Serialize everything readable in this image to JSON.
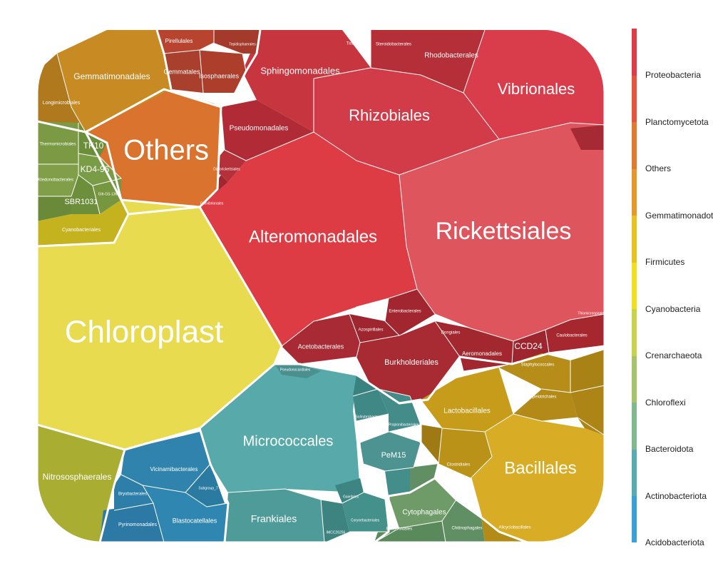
{
  "chart_data": {
    "type": "voronoi-treemap",
    "legend": {
      "title": "",
      "items": [
        {
          "name": "Proteobacteria",
          "color": "#e03c46"
        },
        {
          "name": "Planctomycetota",
          "color": "#e5553d"
        },
        {
          "name": "Others",
          "color": "#e07a2e"
        },
        {
          "name": "Gemmatimonadota",
          "color": "#e4992a"
        },
        {
          "name": "Firmicutes",
          "color": "#e8c21e"
        },
        {
          "name": "Cyanobacteria",
          "color": "#f0e020"
        },
        {
          "name": "Crenarchaeota",
          "color": "#c8d24a"
        },
        {
          "name": "Chloroflexi",
          "color": "#a6c46a"
        },
        {
          "name": "Bacteroidota",
          "color": "#80b890"
        },
        {
          "name": "Actinobacteriota",
          "color": "#58acb0"
        },
        {
          "name": "Acidobacteriota",
          "color": "#3aa0d8"
        }
      ]
    },
    "cells": [
      {
        "label": "Chloroplast",
        "group": "Cyanobacteria",
        "size": "xl"
      },
      {
        "label": "Rickettsiales",
        "group": "Proteobacteria",
        "size": "l"
      },
      {
        "label": "Alteromonadales",
        "group": "Proteobacteria",
        "size": "m"
      },
      {
        "label": "Rhizobiales",
        "group": "Proteobacteria",
        "size": "m"
      },
      {
        "label": "Vibrionales",
        "group": "Proteobacteria",
        "size": "m"
      },
      {
        "label": "Sphingomonadales",
        "group": "Proteobacteria",
        "size": "s"
      },
      {
        "label": "Rhodobacterales",
        "group": "Proteobacteria",
        "size": "xs"
      },
      {
        "label": "Pseudomonadales",
        "group": "Proteobacteria",
        "size": "xs"
      },
      {
        "label": "Acetobacterales",
        "group": "Proteobacteria",
        "size": "xs"
      },
      {
        "label": "Burkholderiales",
        "group": "Proteobacteria",
        "size": "xs"
      },
      {
        "label": "Aeromonadales",
        "group": "Proteobacteria",
        "size": "xxs"
      },
      {
        "label": "CCD24",
        "group": "Proteobacteria",
        "size": "xs"
      },
      {
        "label": "Tistrellales",
        "group": "Proteobacteria",
        "size": "xxs"
      },
      {
        "label": "Steroidobacterales",
        "group": "Proteobacteria",
        "size": "xxs"
      },
      {
        "label": "Enterobacterales",
        "group": "Proteobacteria",
        "size": "xxs"
      },
      {
        "label": "Azospirillales",
        "group": "Proteobacteria",
        "size": "xxs"
      },
      {
        "label": "Caulobacterales",
        "group": "Proteobacteria",
        "size": "xxs"
      },
      {
        "label": "Cellvibrionales",
        "group": "Proteobacteria",
        "size": "xxs"
      },
      {
        "label": "Diplorickettsiales",
        "group": "Proteobacteria",
        "size": "xxs"
      },
      {
        "label": "Dongiales",
        "group": "Proteobacteria",
        "size": "xxs"
      },
      {
        "label": "Thiomicrospirales",
        "group": "Proteobacteria",
        "size": "xxs"
      },
      {
        "label": "Pirellulales",
        "group": "Planctomycetota",
        "size": "xxs"
      },
      {
        "label": "Gemmatales",
        "group": "Planctomycetota",
        "size": "xxs"
      },
      {
        "label": "Isosphaerales",
        "group": "Planctomycetota",
        "size": "xxs"
      },
      {
        "label": "Tepidisphaerales",
        "group": "Planctomycetota",
        "size": "xxs"
      },
      {
        "label": "Others",
        "group": "Others",
        "size": "l"
      },
      {
        "label": "Gemmatimonadales",
        "group": "Gemmatimonadota",
        "size": "s"
      },
      {
        "label": "Longimicrobiales",
        "group": "Gemmatimonadota",
        "size": "xxs"
      },
      {
        "label": "Bacillales",
        "group": "Firmicutes",
        "size": "m"
      },
      {
        "label": "Lactobacillales",
        "group": "Firmicutes",
        "size": "xs"
      },
      {
        "label": "Clostridiales",
        "group": "Firmicutes",
        "size": "xxs"
      },
      {
        "label": "Erysipelotrichales",
        "group": "Firmicutes",
        "size": "xxs"
      },
      {
        "label": "Staphylococcales",
        "group": "Firmicutes",
        "size": "xxs"
      },
      {
        "label": "Alicyclobacillales",
        "group": "Firmicutes",
        "size": "xxs"
      },
      {
        "label": "Cyanobacteriales",
        "group": "Cyanobacteria",
        "size": "xxs"
      },
      {
        "label": "Nitrososphaerales",
        "group": "Crenarchaeota",
        "size": "s"
      },
      {
        "label": "TK10",
        "group": "Chloroflexi",
        "size": "xs"
      },
      {
        "label": "KD4-96",
        "group": "Chloroflexi",
        "size": "xs"
      },
      {
        "label": "SBR1031",
        "group": "Chloroflexi",
        "size": "xs"
      },
      {
        "label": "Thermomicrobiales",
        "group": "Chloroflexi",
        "size": "xxs"
      },
      {
        "label": "Ktedonobacterales",
        "group": "Chloroflexi",
        "size": "xxs"
      },
      {
        "label": "Gitt-GS-136",
        "group": "Chloroflexi",
        "size": "xxs"
      },
      {
        "label": "Cytophagales",
        "group": "Bacteroidota",
        "size": "xs"
      },
      {
        "label": "Chitinophagales",
        "group": "Bacteroidota",
        "size": "xxs"
      },
      {
        "label": "Bacteroidales",
        "group": "Bacteroidota",
        "size": "xxs"
      },
      {
        "label": "Micrococcales",
        "group": "Actinobacteriota",
        "size": "m"
      },
      {
        "label": "Frankiales",
        "group": "Actinobacteriota",
        "size": "s"
      },
      {
        "label": "PeM15",
        "group": "Actinobacteriota",
        "size": "xs"
      },
      {
        "label": "Solirubrobacterales",
        "group": "Actinobacteriota",
        "size": "xxs"
      },
      {
        "label": "Propionibacteriales",
        "group": "Actinobacteriota",
        "size": "xxs"
      },
      {
        "label": "Corynebacteriales",
        "group": "Actinobacteriota",
        "size": "xxs"
      },
      {
        "label": "Gaiellales",
        "group": "Actinobacteriota",
        "size": "xxs"
      },
      {
        "label": "IMCC26256",
        "group": "Actinobacteriota",
        "size": "xxs"
      },
      {
        "label": "Pseudonocardiales",
        "group": "Actinobacteriota",
        "size": "xxs"
      },
      {
        "label": "Vicinamibacterales",
        "group": "Acidobacteriota",
        "size": "xs"
      },
      {
        "label": "Blastocatellales",
        "group": "Acidobacteriota",
        "size": "xs"
      },
      {
        "label": "Pyrinomonadales",
        "group": "Acidobacteriota",
        "size": "xxs"
      },
      {
        "label": "Bryobacterales",
        "group": "Acidobacteriota",
        "size": "xxs"
      },
      {
        "label": "Subgroup_7",
        "group": "Acidobacteriota",
        "size": "xxs"
      }
    ]
  }
}
